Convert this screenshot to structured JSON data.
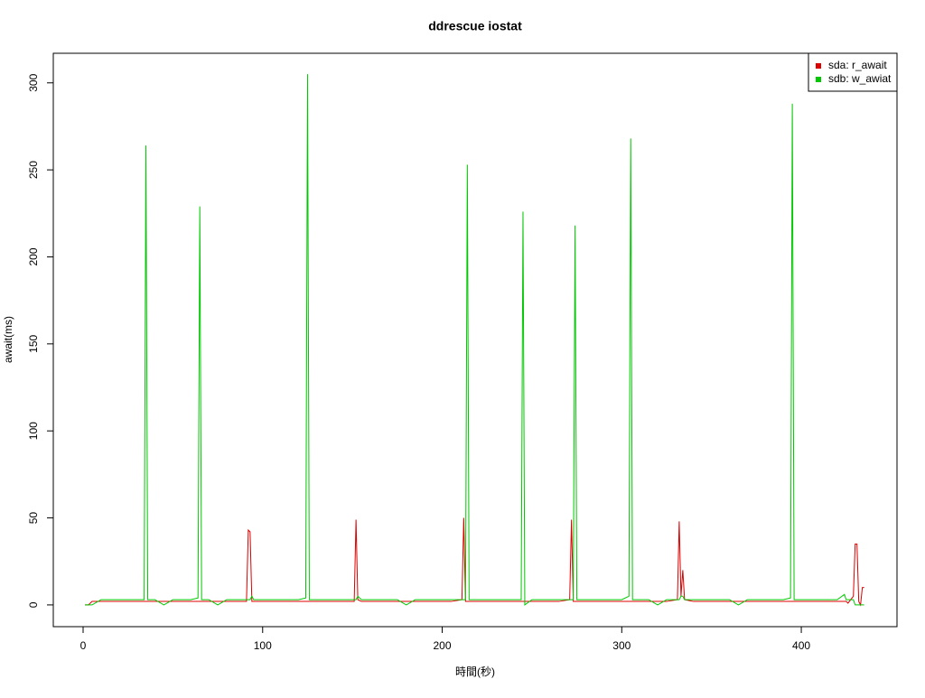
{
  "chart_data": {
    "type": "line",
    "title": "ddrescue iostat",
    "x_label": "時間(秒)",
    "y_label": "await(ms)",
    "x": [
      1,
      3,
      5,
      10,
      15,
      20,
      25,
      30,
      34,
      35,
      36,
      40,
      45,
      50,
      55,
      60,
      64,
      65,
      66,
      70,
      75,
      80,
      85,
      91,
      92,
      93,
      94,
      95,
      100,
      105,
      110,
      115,
      120,
      124,
      125,
      126,
      130,
      135,
      140,
      145,
      151,
      152,
      153,
      155,
      160,
      165,
      170,
      175,
      180,
      185,
      190,
      195,
      200,
      205,
      211,
      212,
      213,
      214,
      215,
      220,
      225,
      230,
      235,
      240,
      244,
      245,
      246,
      250,
      255,
      260,
      265,
      271,
      272,
      273,
      274,
      275,
      280,
      285,
      290,
      295,
      300,
      304,
      305,
      306,
      310,
      315,
      320,
      325,
      331,
      332,
      333,
      334,
      335,
      340,
      345,
      350,
      355,
      360,
      365,
      370,
      375,
      380,
      385,
      390,
      394,
      395,
      396,
      400,
      405,
      410,
      415,
      420,
      424,
      425,
      426,
      429,
      430,
      431,
      432,
      433,
      434,
      435
    ],
    "series": [
      {
        "name": "sda: r_await",
        "color": "#dd0000",
        "values": [
          0,
          0,
          2,
          2,
          2,
          2,
          2,
          2,
          2,
          2,
          2,
          2,
          2,
          2,
          2,
          2,
          2,
          2,
          2,
          2,
          2,
          2,
          2,
          2,
          43,
          42,
          2,
          2,
          2,
          2,
          2,
          2,
          2,
          2,
          2,
          2,
          2,
          2,
          2,
          2,
          2,
          49,
          3,
          2,
          2,
          2,
          2,
          2,
          2,
          2,
          2,
          2,
          2,
          2,
          3,
          50,
          2,
          2,
          2,
          2,
          2,
          2,
          2,
          2,
          2,
          2,
          2,
          2,
          2,
          2,
          2,
          3,
          49,
          2,
          2,
          2,
          2,
          2,
          2,
          2,
          2,
          2,
          2,
          2,
          2,
          2,
          2,
          2,
          3,
          48,
          5,
          20,
          3,
          2,
          2,
          2,
          2,
          2,
          2,
          2,
          2,
          2,
          2,
          2,
          2,
          2,
          2,
          2,
          2,
          2,
          2,
          2,
          2,
          2,
          1,
          5,
          35,
          35,
          2,
          0,
          10,
          10
        ]
      },
      {
        "name": "sdb: w_awiat",
        "color": "#00c800",
        "values": [
          0,
          0,
          0,
          3,
          3,
          3,
          3,
          3,
          3,
          264,
          3,
          3,
          0,
          3,
          3,
          3,
          4,
          229,
          3,
          3,
          0,
          3,
          3,
          3,
          3,
          3,
          5,
          3,
          3,
          3,
          3,
          3,
          3,
          4,
          305,
          3,
          3,
          3,
          3,
          3,
          3,
          3,
          5,
          3,
          3,
          3,
          3,
          3,
          0,
          3,
          3,
          3,
          3,
          3,
          3,
          3,
          3,
          253,
          3,
          3,
          3,
          3,
          3,
          3,
          3,
          226,
          0,
          3,
          3,
          3,
          3,
          3,
          3,
          3,
          218,
          3,
          3,
          3,
          3,
          3,
          3,
          5,
          268,
          3,
          3,
          3,
          0,
          3,
          3,
          3,
          5,
          5,
          3,
          3,
          3,
          3,
          3,
          3,
          0,
          3,
          3,
          3,
          3,
          3,
          4,
          288,
          3,
          3,
          3,
          3,
          3,
          3,
          6,
          3,
          3,
          3,
          0,
          0,
          0,
          0,
          0,
          0
        ]
      }
    ],
    "xlim": [
      -16.6,
      453.3
    ],
    "ylim": [
      -12.5,
      317
    ],
    "xticks": [
      0,
      100,
      200,
      300,
      400
    ],
    "yticks": [
      0,
      50,
      100,
      150,
      200,
      250,
      300
    ],
    "legend": "top-right"
  }
}
